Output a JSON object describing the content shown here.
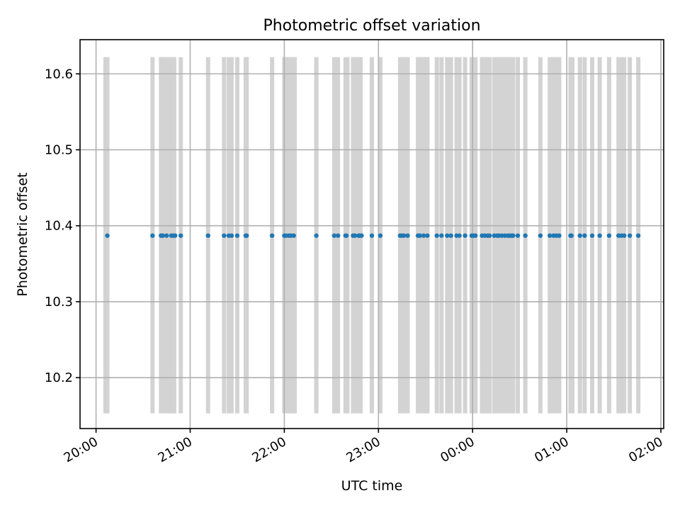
{
  "chart_data": {
    "type": "scatter",
    "title": "Photometric offset variation",
    "xlabel": "UTC time",
    "ylabel": "Photometric offset",
    "x_ticks": [
      "20:00",
      "21:00",
      "22:00",
      "23:00",
      "00:00",
      "01:00",
      "02:00"
    ],
    "y_ticks": [
      "10.2",
      "10.3",
      "10.4",
      "10.5",
      "10.6"
    ],
    "y_tick_values": [
      10.2,
      10.3,
      10.4,
      10.5,
      10.6
    ],
    "xlim_hours": [
      19.83,
      26.03
    ],
    "ylim": [
      10.133,
      10.645
    ],
    "grid": true,
    "span_range": [
      10.153,
      10.622
    ],
    "y_value": 10.387,
    "x_hours": [
      20.12,
      20.6,
      20.69,
      20.71,
      20.75,
      20.8,
      20.82,
      20.84,
      20.9,
      21.19,
      21.36,
      21.41,
      21.44,
      21.5,
      21.59,
      21.6,
      21.87,
      22.0,
      22.02,
      22.05,
      22.07,
      22.1,
      22.34,
      22.53,
      22.57,
      22.65,
      22.66,
      22.73,
      22.75,
      22.79,
      22.8,
      22.82,
      22.93,
      23.02,
      23.23,
      23.25,
      23.27,
      23.31,
      23.42,
      23.44,
      23.48,
      23.52,
      23.62,
      23.67,
      23.73,
      23.77,
      23.83,
      23.86,
      23.92,
      23.99,
      24.01,
      24.03,
      24.1,
      24.13,
      24.16,
      24.18,
      24.23,
      24.26,
      24.28,
      24.31,
      24.34,
      24.37,
      24.39,
      24.41,
      24.43,
      24.48,
      24.56,
      24.72,
      24.82,
      24.86,
      24.89,
      24.92,
      25.04,
      25.05,
      25.14,
      25.19,
      25.27,
      25.35,
      25.45,
      25.55,
      25.58,
      25.61,
      25.67,
      25.76
    ],
    "span_hours": [
      20.1,
      20.12,
      20.6,
      20.69,
      20.71,
      20.75,
      20.79,
      20.81,
      20.83,
      20.9,
      21.19,
      21.36,
      21.41,
      21.44,
      21.5,
      21.59,
      21.6,
      21.87,
      22.0,
      22.01,
      22.03,
      22.05,
      22.07,
      22.09,
      22.11,
      22.34,
      22.53,
      22.57,
      22.65,
      22.67,
      22.73,
      22.75,
      22.79,
      22.81,
      22.93,
      23.02,
      23.23,
      23.25,
      23.27,
      23.31,
      23.42,
      23.44,
      23.48,
      23.52,
      23.62,
      23.67,
      23.73,
      23.77,
      23.83,
      23.86,
      23.92,
      23.99,
      24.01,
      24.03,
      24.1,
      24.13,
      24.16,
      24.18,
      24.23,
      24.26,
      24.28,
      24.31,
      24.34,
      24.37,
      24.39,
      24.41,
      24.43,
      24.48,
      24.56,
      24.72,
      24.82,
      24.86,
      24.89,
      24.92,
      25.04,
      25.06,
      25.14,
      25.19,
      25.27,
      25.35,
      25.45,
      25.55,
      25.58,
      25.61,
      25.67,
      25.76
    ],
    "point_color": "#1f77b4",
    "span_color": "#d3d3d3"
  }
}
